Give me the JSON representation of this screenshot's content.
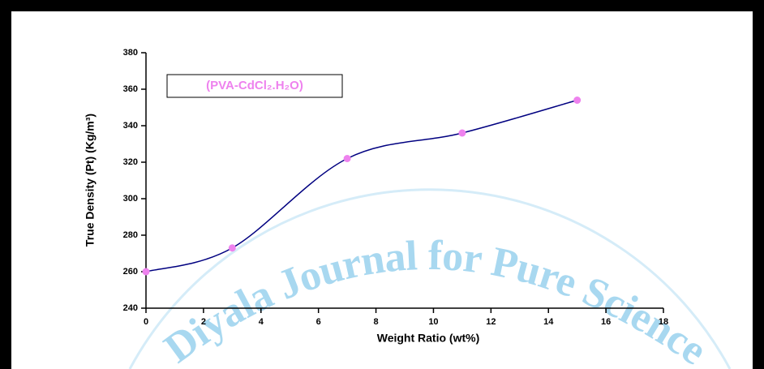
{
  "chart_data": {
    "type": "line",
    "watermark": "Diyala Journal for Pure Science",
    "xlabel": "Weight Ratio (wt%)",
    "ylabel": "True Density (Pt) (Kg/m³)",
    "x": [
      0,
      3,
      7,
      11,
      15
    ],
    "series": [
      {
        "name": "(PVA-CdCl₂.H₂O)",
        "color": "#000080",
        "marker_color": "#ee82ee",
        "values": [
          260,
          273,
          322,
          336,
          354
        ]
      }
    ],
    "xlim": [
      0,
      18
    ],
    "xticks": [
      0,
      2,
      4,
      6,
      8,
      10,
      12,
      14,
      16,
      18
    ],
    "ylim": [
      240,
      380
    ],
    "yticks": [
      240,
      260,
      280,
      300,
      320,
      340,
      360,
      380
    ],
    "smooth": true,
    "grid": false,
    "legend": "upper left"
  }
}
